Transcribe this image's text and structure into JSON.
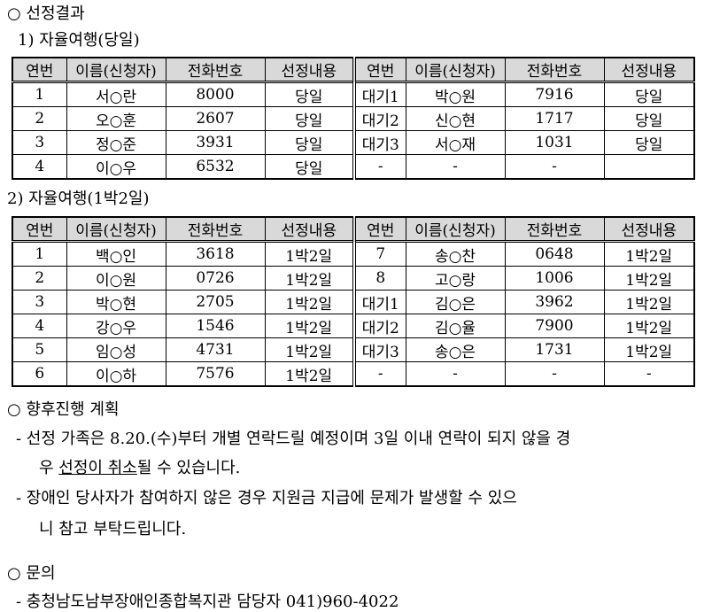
{
  "section1": {
    "title": "○ 선정결과"
  },
  "table1": {
    "title": "1) 자율여행(당일)",
    "headers": [
      "연번",
      "이름(신청자)",
      "전화번호",
      "선정내용",
      "연번",
      "이름(신청자)",
      "전화번호",
      "선정내용"
    ],
    "rows": [
      [
        "1",
        "서○란",
        "8000",
        "당일",
        "대기1",
        "박○원",
        "7916",
        "당일"
      ],
      [
        "2",
        "오○훈",
        "2607",
        "당일",
        "대기2",
        "신○현",
        "1717",
        "당일"
      ],
      [
        "3",
        "정○준",
        "3931",
        "당일",
        "대기3",
        "서○재",
        "1031",
        "당일"
      ],
      [
        "4",
        "이○우",
        "6532",
        "당일",
        "-",
        "-",
        "-",
        ""
      ]
    ]
  },
  "table2": {
    "title": "2) 자율여행(1박2일)",
    "headers": [
      "연번",
      "이름(신청자)",
      "전화번호",
      "선정내용",
      "연번",
      "이름(신청자)",
      "전화번호",
      "선정내용"
    ],
    "rows": [
      [
        "1",
        "백○인",
        "3618",
        "1박2일",
        "7",
        "송○찬",
        "0648",
        "1박2일"
      ],
      [
        "2",
        "이○원",
        "0726",
        "1박2일",
        "8",
        "고○랑",
        "1006",
        "1박2일"
      ],
      [
        "3",
        "박○현",
        "2705",
        "1박2일",
        "대기1",
        "김○은",
        "3962",
        "1박2일"
      ],
      [
        "4",
        "강○우",
        "1546",
        "1박2일",
        "대기2",
        "김○율",
        "7900",
        "1박2일"
      ],
      [
        "5",
        "임○성",
        "4731",
        "1박2일",
        "대기3",
        "송○은",
        "1731",
        "1박2일"
      ],
      [
        "6",
        "이○하",
        "7576",
        "1박2일",
        "-",
        "-",
        "-",
        "-"
      ]
    ]
  },
  "section2": {
    "title": "○ 향후진행 계획",
    "line1": "- 선정 가족은 8.20.(수)부터 개별 연락드릴 예정이며 3일 이내 연락이 되지 않을 경",
    "line2_pre": "우 ",
    "line2_u": "선정이 취소",
    "line2_post": "될 수 있습니다.",
    "line3": "- 장애인 당사자가 참여하지 않은 경우 지원금 지급에 문제가 발생할 수 있으",
    "line4": "니 참고 부탁드립니다."
  },
  "section3": {
    "title": "○ 문의",
    "line1": "- 충청남도남부장애인종합복지관 담당자 041)960-4022"
  }
}
